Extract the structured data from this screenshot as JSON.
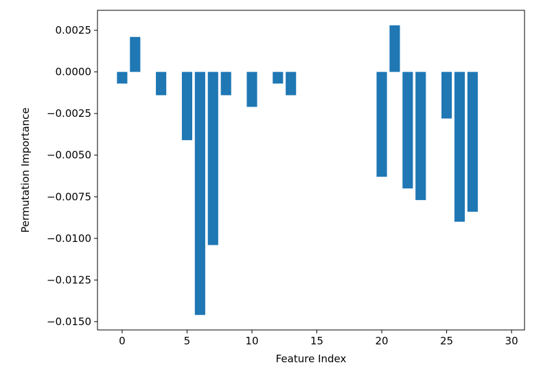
{
  "chart_data": {
    "type": "bar",
    "title": "",
    "xlabel": "Feature Index",
    "ylabel": "Permutation Importance",
    "xlim": [
      -1.9,
      31.0
    ],
    "ylim": [
      -0.0155,
      0.0037
    ],
    "xticks": [
      0,
      5,
      10,
      15,
      20,
      25,
      30
    ],
    "xtick_labels": [
      "0",
      "5",
      "10",
      "15",
      "20",
      "25",
      "30"
    ],
    "yticks": [
      0.0025,
      0.0,
      -0.0025,
      -0.005,
      -0.0075,
      -0.01,
      -0.0125,
      -0.015
    ],
    "ytick_labels": [
      "0.0025",
      "0.0000",
      "−0.0025",
      "−0.0050",
      "−0.0075",
      "−0.0100",
      "−0.0125",
      "−0.0150"
    ],
    "bar_color": "#1f77b4",
    "grid": false,
    "legend": "none",
    "points": [
      {
        "x": 0,
        "y": -0.0007
      },
      {
        "x": 1,
        "y": 0.0021
      },
      {
        "x": 3,
        "y": -0.0014
      },
      {
        "x": 5,
        "y": -0.0041
      },
      {
        "x": 6,
        "y": -0.0146
      },
      {
        "x": 7,
        "y": -0.0104
      },
      {
        "x": 8,
        "y": -0.0014
      },
      {
        "x": 10,
        "y": -0.0021
      },
      {
        "x": 12,
        "y": -0.0007
      },
      {
        "x": 13,
        "y": -0.0014
      },
      {
        "x": 20,
        "y": -0.0063
      },
      {
        "x": 21,
        "y": 0.0028
      },
      {
        "x": 22,
        "y": -0.007
      },
      {
        "x": 23,
        "y": -0.0077
      },
      {
        "x": 25,
        "y": -0.0028
      },
      {
        "x": 26,
        "y": -0.009
      },
      {
        "x": 27,
        "y": -0.0084
      }
    ]
  }
}
